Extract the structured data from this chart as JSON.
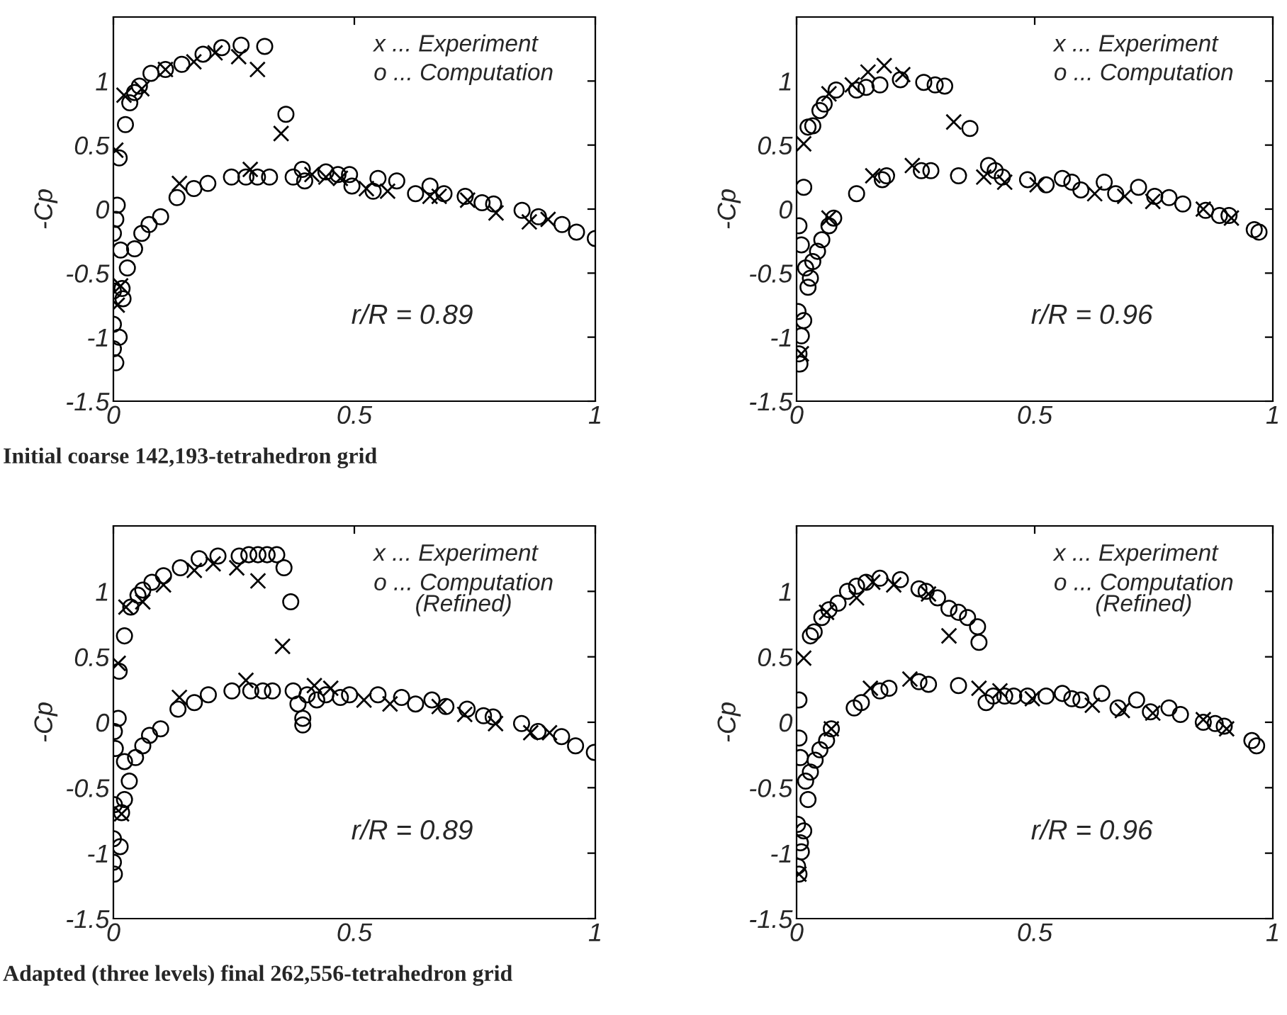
{
  "chart_data": [
    {
      "type": "scatter",
      "ylabel": "-Cp",
      "xlim": [
        0,
        1
      ],
      "ylim": [
        -1.5,
        1.5
      ],
      "xticks": [
        0,
        0.5,
        1
      ],
      "yticks": [
        -1.5,
        -1,
        -0.5,
        0,
        0.5,
        1
      ],
      "grid": false,
      "legend": false,
      "annotations": [
        "r/R = 0.89",
        "x ... Experiment",
        "o ... Computation",
        "Initial coarse 142,193-tetrahedron grid"
      ],
      "series": [
        {
          "color": "#000000",
          "marker": "cross",
          "x": [
            0.005,
            0.022,
            0.059,
            0.108,
            0.167,
            0.211,
            0.26,
            0.299,
            0.348,
            0.137,
            0.284,
            0.412,
            0.441,
            0.471,
            0.525,
            0.569,
            0.657,
            0.676,
            0.735,
            0.794,
            0.863,
            0.902,
            0.015,
            0.008
          ],
          "values": [
            0.46,
            0.89,
            0.94,
            1.09,
            1.15,
            1.22,
            1.19,
            1.09,
            0.59,
            0.2,
            0.31,
            0.27,
            0.25,
            0.24,
            0.16,
            0.14,
            0.1,
            0.1,
            0.07,
            -0.03,
            -0.1,
            -0.08,
            -0.6,
            -0.75
          ]
        },
        {
          "color": "#000000",
          "marker": "circle",
          "x": [
            0.012,
            0.025,
            0.034,
            0.044,
            0.054,
            0.078,
            0.108,
            0.142,
            0.186,
            0.225,
            0.265,
            0.314,
            0.358,
            0.008,
            0.005,
            0,
            0.015,
            0.029,
            0.044,
            0.059,
            0.074,
            0.098,
            0.132,
            0.167,
            0.196,
            0.245,
            0.275,
            0.299,
            0.324,
            0.373,
            0.392,
            0.397,
            0.441,
            0.466,
            0.49,
            0.495,
            0.549,
            0.539,
            0.588,
            0.627,
            0.657,
            0.686,
            0.73,
            0.765,
            0.789,
            0.848,
            0.882,
            0.931,
            0.961,
            1.0,
            0,
            0.018,
            0.02,
            0,
            0.012,
            0,
            0.005
          ],
          "values": [
            0.4,
            0.66,
            0.83,
            0.91,
            0.96,
            1.06,
            1.09,
            1.13,
            1.21,
            1.26,
            1.28,
            1.27,
            0.74,
            0.03,
            -0.08,
            -0.19,
            -0.32,
            -0.46,
            -0.31,
            -0.19,
            -0.12,
            -0.06,
            0.09,
            0.16,
            0.2,
            0.25,
            0.25,
            0.25,
            0.25,
            0.25,
            0.31,
            0.22,
            0.29,
            0.27,
            0.27,
            0.18,
            0.24,
            0.14,
            0.22,
            0.12,
            0.18,
            0.12,
            0.1,
            0.05,
            0.04,
            -0.01,
            -0.06,
            -0.12,
            -0.18,
            -0.23,
            -0.64,
            -0.62,
            -0.7,
            -0.9,
            -1.0,
            -1.09,
            -1.2
          ]
        }
      ]
    },
    {
      "type": "scatter",
      "ylabel": "-Cp",
      "xlim": [
        0,
        1
      ],
      "ylim": [
        -1.5,
        1.5
      ],
      "xticks": [
        0,
        0.5,
        1
      ],
      "yticks": [
        -1.5,
        -1,
        -0.5,
        0,
        0.5,
        1
      ],
      "grid": false,
      "legend": false,
      "annotations": [
        "r/R = 0.96",
        "x ... Experiment",
        "o ... Computation"
      ],
      "series": [
        {
          "color": "#000000",
          "marker": "cross",
          "x": [
            0.015,
            0.068,
            0.117,
            0.15,
            0.184,
            0.223,
            0.33,
            0.16,
            0.243,
            0.393,
            0.437,
            0.505,
            0.626,
            0.689,
            0.748,
            0.854,
            0.913,
            0.068,
            0.01
          ],
          "values": [
            0.51,
            0.9,
            0.97,
            1.07,
            1.12,
            1.05,
            0.68,
            0.26,
            0.34,
            0.25,
            0.21,
            0.19,
            0.12,
            0.1,
            0.06,
            0.0,
            -0.07,
            -0.07,
            -1.13
          ]
        },
        {
          "color": "#000000",
          "marker": "circle",
          "x": [
            0.015,
            0.024,
            0.034,
            0.049,
            0.058,
            0.083,
            0.126,
            0.146,
            0.175,
            0.218,
            0.267,
            0.291,
            0.311,
            0.364,
            0.005,
            0.01,
            0.019,
            0.029,
            0.024,
            0.034,
            0.044,
            0.053,
            0.068,
            0.078,
            0.126,
            0.18,
            0.189,
            0.262,
            0.282,
            0.34,
            0.403,
            0.417,
            0.432,
            0.485,
            0.524,
            0.558,
            0.578,
            0.597,
            0.646,
            0.67,
            0.718,
            0.752,
            0.782,
            0.811,
            0.859,
            0.888,
            0.908,
            0.961,
            0.971,
            0.003,
            0.015,
            0.01,
            0.005,
            0.007
          ],
          "values": [
            0.17,
            0.64,
            0.65,
            0.77,
            0.82,
            0.93,
            0.93,
            0.95,
            0.97,
            1.01,
            0.99,
            0.97,
            0.96,
            0.63,
            -0.13,
            -0.28,
            -0.46,
            -0.54,
            -0.61,
            -0.41,
            -0.33,
            -0.24,
            -0.13,
            -0.07,
            0.12,
            0.23,
            0.26,
            0.3,
            0.3,
            0.26,
            0.34,
            0.3,
            0.25,
            0.23,
            0.19,
            0.24,
            0.21,
            0.15,
            0.21,
            0.12,
            0.17,
            0.1,
            0.09,
            0.04,
            -0.01,
            -0.05,
            -0.05,
            -0.16,
            -0.18,
            -0.8,
            -0.87,
            -0.99,
            -1.13,
            -1.21
          ]
        }
      ]
    },
    {
      "type": "scatter",
      "ylabel": "-Cp",
      "xlim": [
        0,
        1
      ],
      "ylim": [
        -1.5,
        1.5
      ],
      "xticks": [
        0,
        0.5,
        1
      ],
      "yticks": [
        -1.5,
        -1,
        -0.5,
        0,
        0.5,
        1
      ],
      "grid": false,
      "legend": false,
      "annotations": [
        "r/R = 0.89",
        "x ... Experiment",
        "o ... Computation\n(Refined)",
        "Adapted (three levels) final 262,556-tetrahedron grid"
      ],
      "series": [
        {
          "color": "#000000",
          "marker": "cross",
          "x": [
            0.01,
            0.026,
            0.061,
            0.104,
            0.168,
            0.207,
            0.256,
            0.3,
            0.351,
            0.137,
            0.275,
            0.417,
            0.451,
            0.52,
            0.574,
            0.676,
            0.729,
            0.793,
            0.866,
            0.905,
            0.017
          ],
          "values": [
            0.45,
            0.88,
            0.92,
            1.05,
            1.16,
            1.21,
            1.18,
            1.08,
            0.58,
            0.19,
            0.32,
            0.28,
            0.26,
            0.17,
            0.14,
            0.12,
            0.06,
            -0.01,
            -0.08,
            -0.08,
            -0.7
          ]
        },
        {
          "color": "#000000",
          "marker": "circle",
          "x": [
            0.012,
            0.023,
            0.036,
            0.051,
            0.061,
            0.08,
            0.104,
            0.139,
            0.178,
            0.217,
            0.261,
            0.281,
            0.3,
            0.319,
            0.339,
            0.354,
            0.368,
            0.01,
            0.002,
            0.004,
            0.023,
            0.033,
            0.046,
            0.061,
            0.075,
            0.098,
            0.134,
            0.168,
            0.197,
            0.246,
            0.285,
            0.31,
            0.33,
            0.373,
            0.383,
            0.393,
            0.393,
            0.402,
            0.422,
            0.441,
            0.471,
            0.49,
            0.549,
            0.598,
            0.627,
            0.661,
            0.69,
            0.734,
            0.768,
            0.788,
            0.847,
            0.881,
            0.93,
            0.959,
            0.998,
            0.002,
            0.023,
            0.017,
            0,
            0.014,
            0,
            0.002
          ],
          "values": [
            0.39,
            0.66,
            0.88,
            0.97,
            1.01,
            1.07,
            1.12,
            1.18,
            1.25,
            1.27,
            1.27,
            1.28,
            1.28,
            1.28,
            1.28,
            1.18,
            0.92,
            0.03,
            -0.07,
            -0.2,
            -0.3,
            -0.45,
            -0.27,
            -0.18,
            -0.1,
            -0.05,
            0.1,
            0.15,
            0.21,
            0.24,
            0.24,
            0.24,
            0.24,
            0.24,
            0.14,
            0.03,
            -0.02,
            0.21,
            0.17,
            0.21,
            0.19,
            0.21,
            0.21,
            0.19,
            0.14,
            0.17,
            0.12,
            0.1,
            0.05,
            0.04,
            -0.01,
            -0.07,
            -0.11,
            -0.18,
            -0.23,
            -0.63,
            -0.59,
            -0.69,
            -0.89,
            -0.95,
            -1.07,
            -1.16
          ]
        }
      ]
    },
    {
      "type": "scatter",
      "ylabel": "-Cp",
      "xlim": [
        0,
        1
      ],
      "ylim": [
        -1.5,
        1.5
      ],
      "xticks": [
        0,
        0.5,
        1
      ],
      "yticks": [
        -1.5,
        -1,
        -0.5,
        0,
        0.5,
        1
      ],
      "grid": false,
      "legend": false,
      "annotations": [
        "r/R = 0.96",
        "x ... Experiment",
        "o ... Computation\n(Refined)"
      ],
      "series": [
        {
          "color": "#000000",
          "marker": "cross",
          "x": [
            0.015,
            0.063,
            0.126,
            0.16,
            0.204,
            0.277,
            0.32,
            0.155,
            0.238,
            0.383,
            0.427,
            0.495,
            0.621,
            0.684,
            0.748,
            0.854,
            0.903,
            0.073,
            0.005
          ],
          "values": [
            0.49,
            0.84,
            0.95,
            1.07,
            1.05,
            0.98,
            0.66,
            0.26,
            0.33,
            0.26,
            0.24,
            0.18,
            0.13,
            0.09,
            0.07,
            0.02,
            -0.05,
            -0.05,
            -1.16
          ]
        },
        {
          "color": "#000000",
          "marker": "circle",
          "x": [
            0.005,
            0.029,
            0.037,
            0.053,
            0.068,
            0.087,
            0.107,
            0.126,
            0.146,
            0.175,
            0.218,
            0.257,
            0.272,
            0.296,
            0.32,
            0.34,
            0.359,
            0.38,
            0.383,
            0.005,
            0.008,
            0.019,
            0.024,
            0.029,
            0.039,
            0.049,
            0.063,
            0.073,
            0.121,
            0.136,
            0.175,
            0.194,
            0.257,
            0.277,
            0.34,
            0.398,
            0.413,
            0.437,
            0.456,
            0.485,
            0.524,
            0.558,
            0.578,
            0.597,
            0.641,
            0.675,
            0.714,
            0.743,
            0.782,
            0.806,
            0.854,
            0.879,
            0.898,
            0.956,
            0.966,
            0.002,
            0.015,
            0.008,
            0.01,
            0.002,
            0.005
          ],
          "values": [
            0.17,
            0.66,
            0.69,
            0.8,
            0.86,
            0.91,
            1.0,
            1.04,
            1.07,
            1.1,
            1.09,
            1.02,
            1.0,
            0.95,
            0.87,
            0.84,
            0.8,
            0.73,
            0.61,
            -0.12,
            -0.27,
            -0.45,
            -0.59,
            -0.38,
            -0.29,
            -0.21,
            -0.14,
            -0.05,
            0.11,
            0.15,
            0.24,
            0.26,
            0.31,
            0.29,
            0.28,
            0.15,
            0.2,
            0.2,
            0.2,
            0.2,
            0.2,
            0.22,
            0.18,
            0.17,
            0.22,
            0.11,
            0.17,
            0.08,
            0.11,
            0.06,
            0.0,
            -0.01,
            -0.03,
            -0.14,
            -0.18,
            -0.78,
            -0.83,
            -0.92,
            -0.99,
            -1.1,
            -1.16
          ]
        }
      ]
    }
  ]
}
